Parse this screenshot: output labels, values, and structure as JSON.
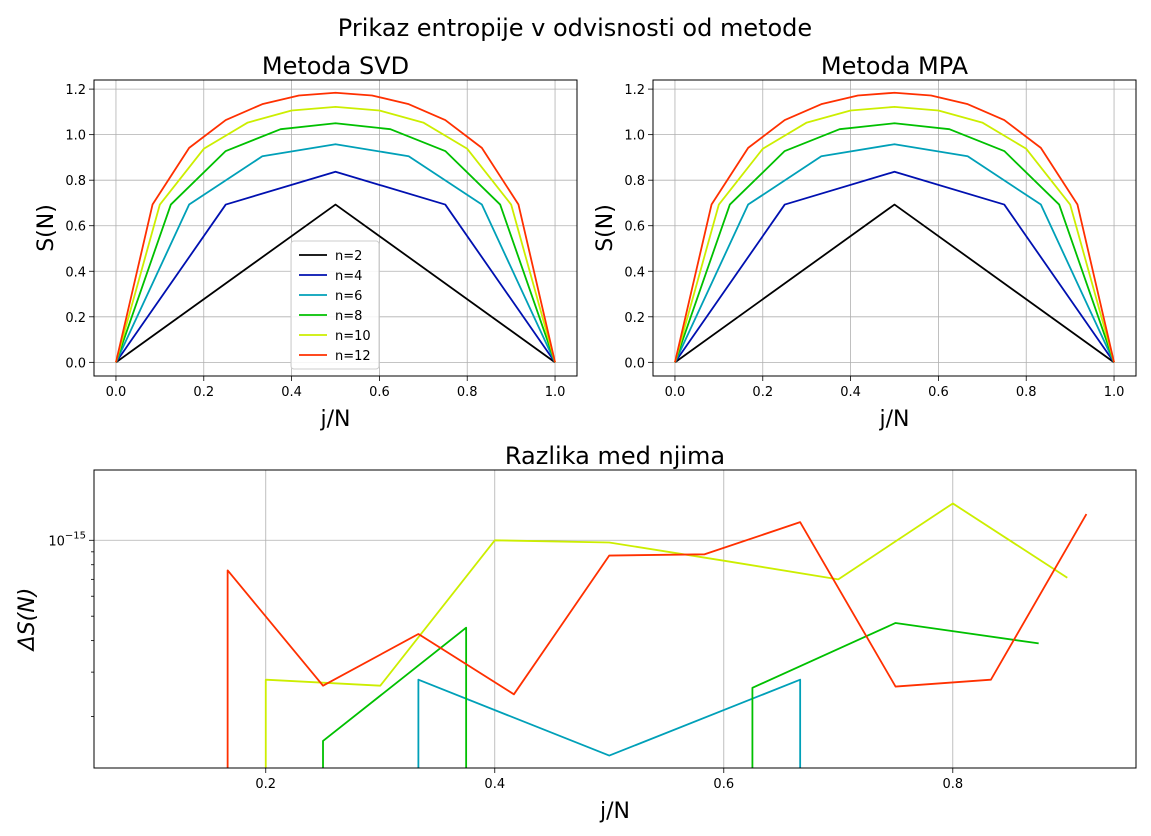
{
  "suptitle": "Prikaz entropije v odvisnosti od metode",
  "colors": {
    "n2": "#000000",
    "n4": "#0010b0",
    "n6": "#00a0b8",
    "n8": "#00c000",
    "n10": "#ccee00",
    "n12": "#ff3000"
  },
  "chart_data": [
    {
      "type": "line",
      "title": "Metoda SVD",
      "xlabel": "j/N",
      "ylabel": "S(N)",
      "xlim": [
        -0.05,
        1.05
      ],
      "ylim": [
        -0.06,
        1.24
      ],
      "xticks": [
        0.0,
        0.2,
        0.4,
        0.6,
        0.8,
        1.0
      ],
      "xtick_labels": [
        "0.0",
        "0.2",
        "0.4",
        "0.6",
        "0.8",
        "1.0"
      ],
      "yticks": [
        0.0,
        0.2,
        0.4,
        0.6,
        0.8,
        1.0,
        1.2
      ],
      "ytick_labels": [
        "0.0",
        "0.2",
        "0.4",
        "0.6",
        "0.8",
        "1.0",
        "1.2"
      ],
      "grid": true,
      "legend": "lower-center",
      "series": [
        {
          "name": "n=2",
          "color": "#000000",
          "x": [
            0,
            0.5,
            1
          ],
          "y": [
            0,
            0.693,
            0
          ]
        },
        {
          "name": "n=4",
          "color": "#0010b0",
          "x": [
            0,
            0.25,
            0.5,
            0.75,
            1
          ],
          "y": [
            0,
            0.693,
            0.837,
            0.693,
            0
          ]
        },
        {
          "name": "n=6",
          "color": "#00a0b8",
          "x": [
            0,
            0.1667,
            0.3333,
            0.5,
            0.6667,
            0.8333,
            1
          ],
          "y": [
            0,
            0.693,
            0.905,
            0.958,
            0.905,
            0.693,
            0
          ]
        },
        {
          "name": "n=8",
          "color": "#00c000",
          "x": [
            0,
            0.125,
            0.25,
            0.375,
            0.5,
            0.625,
            0.75,
            0.875,
            1
          ],
          "y": [
            0,
            0.693,
            0.928,
            1.024,
            1.05,
            1.024,
            0.928,
            0.693,
            0
          ]
        },
        {
          "name": "n=10",
          "color": "#ccee00",
          "x": [
            0,
            0.1,
            0.2,
            0.3,
            0.4,
            0.5,
            0.6,
            0.7,
            0.8,
            0.9,
            1
          ],
          "y": [
            0,
            0.693,
            0.938,
            1.053,
            1.106,
            1.122,
            1.106,
            1.053,
            0.938,
            0.693,
            0
          ]
        },
        {
          "name": "n=12",
          "color": "#ff3000",
          "x": [
            0,
            0.0833,
            0.1667,
            0.25,
            0.3333,
            0.4167,
            0.5,
            0.5833,
            0.6667,
            0.75,
            0.8333,
            0.9167,
            1
          ],
          "y": [
            0,
            0.693,
            0.942,
            1.064,
            1.134,
            1.172,
            1.184,
            1.172,
            1.134,
            1.064,
            0.942,
            0.693,
            0
          ]
        }
      ]
    },
    {
      "type": "line",
      "title": "Metoda MPA",
      "xlabel": "j/N",
      "ylabel": "S(N)",
      "xlim": [
        -0.05,
        1.05
      ],
      "ylim": [
        -0.06,
        1.24
      ],
      "xticks": [
        0.0,
        0.2,
        0.4,
        0.6,
        0.8,
        1.0
      ],
      "xtick_labels": [
        "0.0",
        "0.2",
        "0.4",
        "0.6",
        "0.8",
        "1.0"
      ],
      "yticks": [
        0.0,
        0.2,
        0.4,
        0.6,
        0.8,
        1.0,
        1.2
      ],
      "ytick_labels": [
        "0.0",
        "0.2",
        "0.4",
        "0.6",
        "0.8",
        "1.0",
        "1.2"
      ],
      "grid": true,
      "series": [
        {
          "color": "#000000",
          "x": [
            0,
            0.5,
            1
          ],
          "y": [
            0,
            0.693,
            0
          ]
        },
        {
          "color": "#0010b0",
          "x": [
            0,
            0.25,
            0.5,
            0.75,
            1
          ],
          "y": [
            0,
            0.693,
            0.837,
            0.693,
            0
          ]
        },
        {
          "color": "#00a0b8",
          "x": [
            0,
            0.1667,
            0.3333,
            0.5,
            0.6667,
            0.8333,
            1
          ],
          "y": [
            0,
            0.693,
            0.905,
            0.958,
            0.905,
            0.693,
            0
          ]
        },
        {
          "color": "#00c000",
          "x": [
            0,
            0.125,
            0.25,
            0.375,
            0.5,
            0.625,
            0.75,
            0.875,
            1
          ],
          "y": [
            0,
            0.693,
            0.928,
            1.024,
            1.05,
            1.024,
            0.928,
            0.693,
            0
          ]
        },
        {
          "color": "#ccee00",
          "x": [
            0,
            0.1,
            0.2,
            0.3,
            0.4,
            0.5,
            0.6,
            0.7,
            0.8,
            0.9,
            1
          ],
          "y": [
            0,
            0.693,
            0.938,
            1.053,
            1.106,
            1.122,
            1.106,
            1.053,
            0.938,
            0.693,
            0
          ]
        },
        {
          "color": "#ff3000",
          "x": [
            0,
            0.0833,
            0.1667,
            0.25,
            0.3333,
            0.4167,
            0.5,
            0.5833,
            0.6667,
            0.75,
            0.8333,
            0.9167,
            1
          ],
          "y": [
            0,
            0.693,
            0.942,
            1.064,
            1.134,
            1.172,
            1.184,
            1.172,
            1.134,
            1.064,
            0.942,
            0.693,
            0
          ]
        }
      ]
    },
    {
      "type": "line",
      "title": "Razlika med njima",
      "xlabel": "j/N",
      "ylabel": "ΔS(N)",
      "yscale": "log",
      "xlim": [
        0.05,
        0.96
      ],
      "ylim": [
        1.25e-16,
        1.9e-15
      ],
      "xticks": [
        0.2,
        0.4,
        0.6,
        0.8
      ],
      "xtick_labels": [
        "0.2",
        "0.4",
        "0.6",
        "0.8"
      ],
      "yticks": [
        1e-15
      ],
      "ytick_labels": [
        "10^-15"
      ],
      "grid": true,
      "series": [
        {
          "color": "#00a0b8",
          "x": [
            0.3333,
            0.3333,
            0.5,
            0.6667,
            0.6667
          ],
          "y": [
            1.25e-16,
            2.8e-16,
            1.4e-16,
            2.8e-16,
            1.25e-16
          ]
        },
        {
          "color": "#00c000",
          "x": [
            0.25,
            0.25,
            0.375,
            0.375
          ],
          "y": [
            1.25e-16,
            1.6e-16,
            4.5e-16,
            1.25e-16
          ]
        },
        {
          "color": "#00c000",
          "x": [
            0.625,
            0.625,
            0.75,
            0.875
          ],
          "y": [
            1.25e-16,
            2.6e-16,
            4.7e-16,
            3.9e-16
          ]
        },
        {
          "color": "#ccee00",
          "x": [
            0.2,
            0.2,
            0.3,
            0.4,
            0.5,
            0.6,
            0.7,
            0.8,
            0.9
          ],
          "y": [
            1.25e-16,
            2.8e-16,
            2.65e-16,
            1e-15,
            9.8e-16,
            8.3e-16,
            7e-16,
            1.4e-15,
            7.1e-16
          ]
        },
        {
          "color": "#ff3000",
          "x": [
            0.1667,
            0.1667,
            0.25,
            0.3333,
            0.4167,
            0.5,
            0.5833,
            0.6667,
            0.75,
            0.8333,
            0.9167
          ],
          "y": [
            1.25e-16,
            7.6e-16,
            2.65e-16,
            4.25e-16,
            2.45e-16,
            8.7e-16,
            8.8e-16,
            1.18e-15,
            2.63e-16,
            2.8e-16,
            1.27e-15
          ]
        }
      ]
    }
  ]
}
